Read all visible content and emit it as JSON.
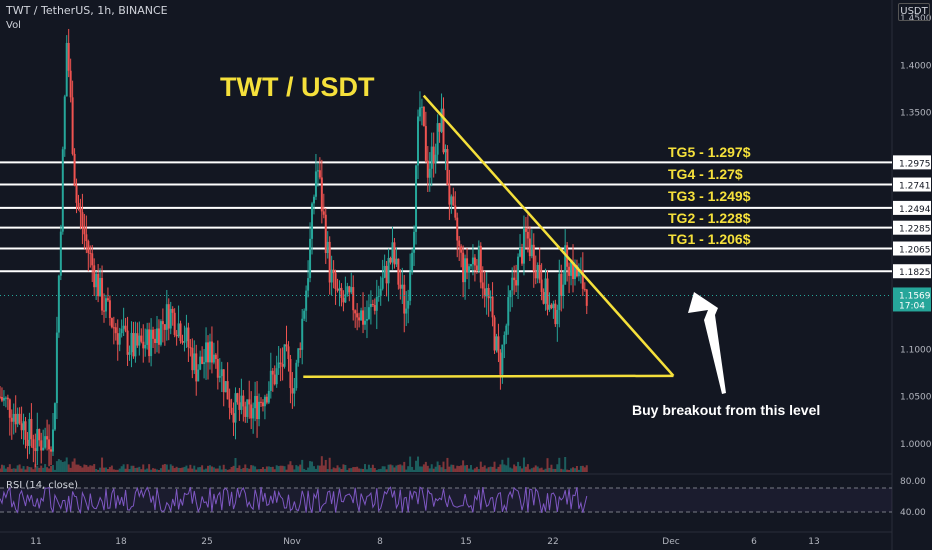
{
  "header": {
    "symbol_line": "TWT / TetherUS, 1h, BINANCE",
    "vol_label": "Vol",
    "currency": "USDT",
    "rsi_label": "RSI (14, close)"
  },
  "annotations": {
    "big_title": "TWT / USDT",
    "buy_note": "Buy breakout from this level",
    "targets": [
      {
        "label": "TG5 - 1.297$",
        "price": 1.2975
      },
      {
        "label": "TG4 - 1.27$",
        "price": 1.2741
      },
      {
        "label": "TG3 - 1.249$",
        "price": 1.2494
      },
      {
        "label": "TG2 - 1.228$",
        "price": 1.2285
      },
      {
        "label": "TG1 - 1.206$",
        "price": 1.2065
      }
    ]
  },
  "colors": {
    "background": "#131722",
    "up": "#26a69a",
    "down": "#ef5350",
    "annotation": "#f5e03b",
    "rsi_line": "#7e57c2",
    "current_price": "#26a69a"
  },
  "chart_data": {
    "type": "candlestick",
    "x_ticks": [
      "11",
      "18",
      "25",
      "Nov",
      "8",
      "15",
      "22",
      "Dec",
      "6",
      "13"
    ],
    "y_ticks": [
      "1.4500",
      "1.4000",
      "1.3500",
      "1.1000",
      "1.0500",
      "1.0000"
    ],
    "ylim": [
      0.97,
      1.45
    ],
    "level_labels": [
      "1.2975",
      "1.2741",
      "1.2494",
      "1.2285",
      "1.2065",
      "1.1825"
    ],
    "levels": [
      1.2975,
      1.2741,
      1.2494,
      1.2285,
      1.2065,
      1.1825
    ],
    "current_price": {
      "label": "1.1569",
      "value": 1.1569,
      "countdown": "17:04"
    },
    "rsi": {
      "y_ticks": [
        "80.00",
        "40.00"
      ],
      "upper": 80,
      "lower": 40
    },
    "trendlines": {
      "descending": {
        "from": {
          "x_frac": 0.475,
          "price": 1.368
        },
        "to": {
          "x_frac": 0.755,
          "price": 1.072
        }
      },
      "support": {
        "from": {
          "x_frac": 0.34,
          "price": 1.071
        },
        "to": {
          "x_frac": 0.755,
          "price": 1.072
        }
      }
    },
    "price_path": [
      [
        0.0,
        1.05
      ],
      [
        0.02,
        1.03
      ],
      [
        0.04,
        1.0
      ],
      [
        0.06,
        1.01
      ],
      [
        0.075,
        1.43
      ],
      [
        0.085,
        1.26
      ],
      [
        0.1,
        1.2
      ],
      [
        0.115,
        1.15
      ],
      [
        0.13,
        1.12
      ],
      [
        0.15,
        1.1
      ],
      [
        0.17,
        1.11
      ],
      [
        0.19,
        1.14
      ],
      [
        0.205,
        1.12
      ],
      [
        0.22,
        1.08
      ],
      [
        0.24,
        1.1
      ],
      [
        0.26,
        1.04
      ],
      [
        0.28,
        1.03
      ],
      [
        0.3,
        1.06
      ],
      [
        0.32,
        1.09
      ],
      [
        0.33,
        1.06
      ],
      [
        0.345,
        1.18
      ],
      [
        0.355,
        1.3
      ],
      [
        0.37,
        1.18
      ],
      [
        0.38,
        1.15
      ],
      [
        0.395,
        1.15
      ],
      [
        0.41,
        1.13
      ],
      [
        0.425,
        1.16
      ],
      [
        0.44,
        1.2
      ],
      [
        0.455,
        1.14
      ],
      [
        0.465,
        1.25
      ],
      [
        0.47,
        1.36
      ],
      [
        0.48,
        1.29
      ],
      [
        0.495,
        1.34
      ],
      [
        0.505,
        1.25
      ],
      [
        0.52,
        1.18
      ],
      [
        0.535,
        1.2
      ],
      [
        0.55,
        1.14
      ],
      [
        0.56,
        1.08
      ],
      [
        0.575,
        1.17
      ],
      [
        0.59,
        1.22
      ],
      [
        0.605,
        1.18
      ],
      [
        0.62,
        1.13
      ],
      [
        0.635,
        1.2
      ],
      [
        0.645,
        1.18
      ],
      [
        0.66,
        1.16
      ]
    ]
  }
}
